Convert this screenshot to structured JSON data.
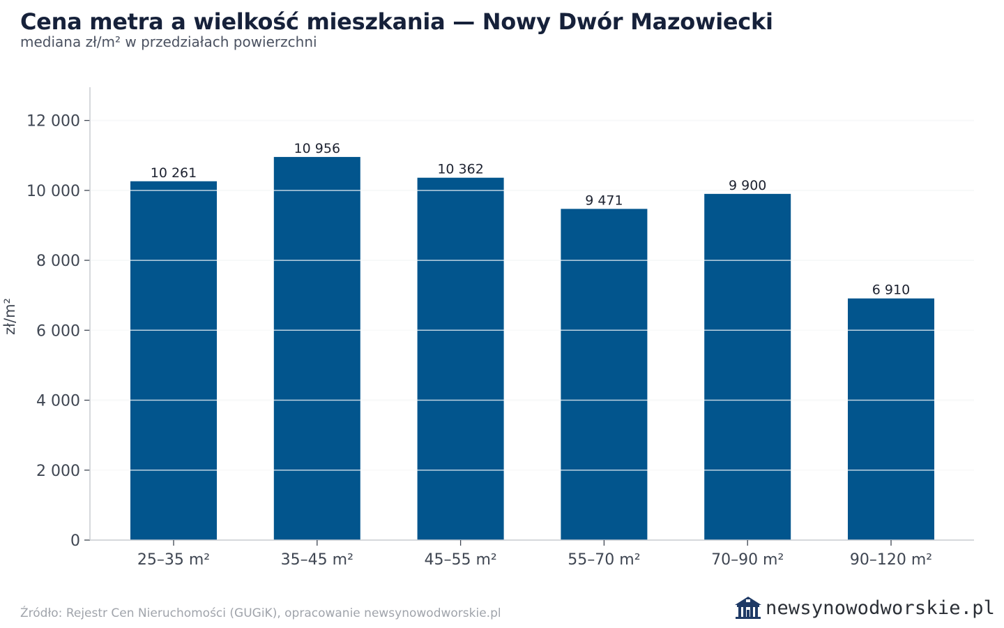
{
  "header": {
    "title": "Cena metra a wielkość mieszkania — Nowy Dwór Mazowiecki",
    "subtitle": "mediana zł/m² w przedziałach powierzchni"
  },
  "footer": {
    "source": "Źródło: Rejestr Cen Nieruchomości (GUGiK), opracowanie newsynowodworskie.pl",
    "logo_text": "newsynowodworskie.pl"
  },
  "colors": {
    "bar": "#02558d",
    "grid": "#e3e5e8",
    "axis": "#c9ccd1"
  },
  "chart_data": {
    "type": "bar",
    "title": "Cena metra a wielkość mieszkania — Nowy Dwór Mazowiecki",
    "subtitle": "mediana zł/m² w przedziałach powierzchni",
    "xlabel": "",
    "ylabel": "zł/m²",
    "categories": [
      "25–35 m²",
      "35–45 m²",
      "45–55 m²",
      "55–70 m²",
      "70–90 m²",
      "90–120 m²"
    ],
    "values": [
      10261,
      10956,
      10362,
      9471,
      9900,
      6910
    ],
    "value_labels": [
      "10 261",
      "10 956",
      "10 362",
      "9 471",
      "9 900",
      "6 910"
    ],
    "yticks": [
      0,
      2000,
      4000,
      6000,
      8000,
      10000,
      12000
    ],
    "ytick_labels": [
      "0",
      "2 000",
      "4 000",
      "6 000",
      "8 000",
      "10 000",
      "12 000"
    ],
    "ylim": [
      0,
      12950
    ],
    "grid": true,
    "legend": "none"
  }
}
